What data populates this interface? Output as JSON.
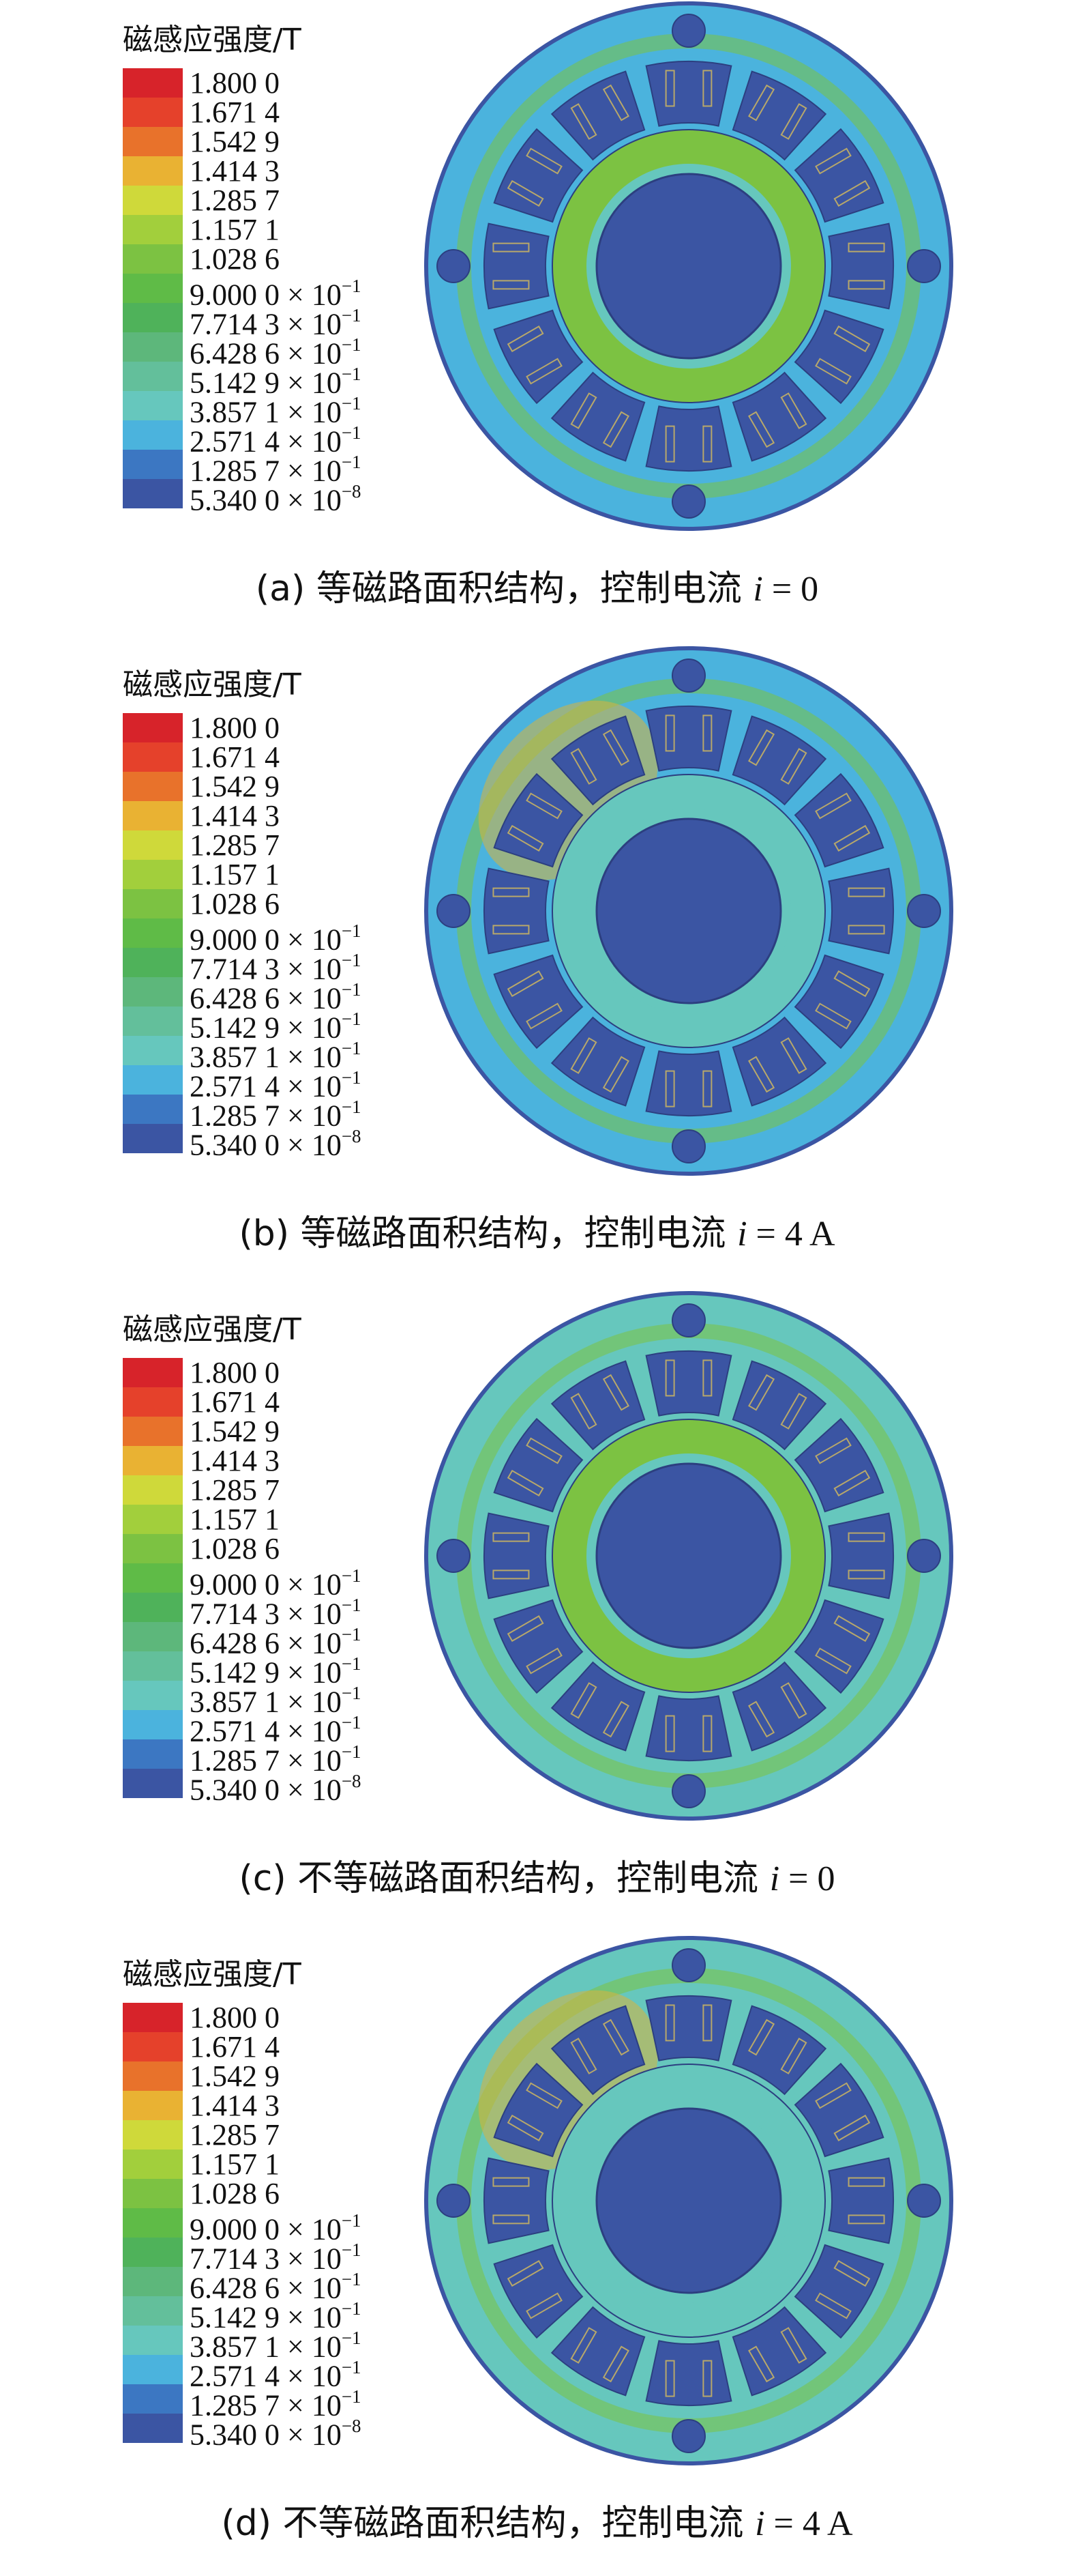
{
  "legend": {
    "title": "磁感应强度/T",
    "levels": [
      {
        "mantissa": "1.800 0",
        "exp": "",
        "color": "#d7232a"
      },
      {
        "mantissa": "1.671 4",
        "exp": "",
        "color": "#e5412b"
      },
      {
        "mantissa": "1.542 9",
        "exp": "",
        "color": "#e8722b"
      },
      {
        "mantissa": "1.414 3",
        "exp": "",
        "color": "#e9b233"
      },
      {
        "mantissa": "1.285 7",
        "exp": "",
        "color": "#cfd93a"
      },
      {
        "mantissa": "1.157 1",
        "exp": "",
        "color": "#a2cf3c"
      },
      {
        "mantissa": "1.028 6",
        "exp": "",
        "color": "#7cc242"
      },
      {
        "mantissa": "9.000 0 × 10",
        "exp": "−1",
        "color": "#5fbb47"
      },
      {
        "mantissa": "7.714 3 × 10",
        "exp": "−1",
        "color": "#4fb25a"
      },
      {
        "mantissa": "6.428 6 × 10",
        "exp": "−1",
        "color": "#5db77b"
      },
      {
        "mantissa": "5.142 9 × 10",
        "exp": "−1",
        "color": "#63bf9b"
      },
      {
        "mantissa": "3.857 1 × 10",
        "exp": "−1",
        "color": "#66c7bd"
      },
      {
        "mantissa": "2.571 4 × 10",
        "exp": "−1",
        "color": "#4bb3dd"
      },
      {
        "mantissa": "1.285 7 × 10",
        "exp": "−1",
        "color": "#3c77c2"
      },
      {
        "mantissa": "5.340 0 × 10",
        "exp": "−8",
        "color": "#3b55a3"
      }
    ]
  },
  "panels": [
    {
      "caption_prefix": "(a) 等磁路面积结构，控制电流 ",
      "var": "i",
      "caption_suffix": " = 0"
    },
    {
      "caption_prefix": "(b) 等磁路面积结构，控制电流 ",
      "var": "i",
      "caption_suffix": " = 4 A"
    },
    {
      "caption_prefix": "(c) 不等磁路面积结构，控制电流 ",
      "var": "i",
      "caption_suffix": " = 0"
    },
    {
      "caption_prefix": "(d) 不等磁路面积结构，控制电流 ",
      "var": "i",
      "caption_suffix": " = 4 A"
    }
  ],
  "colors": {
    "field_dark_blue": "#3b55a3",
    "field_cyan": "#4bb3dd",
    "field_teal": "#66c7bd",
    "field_green": "#7cc242",
    "magnet_gold": "#d8b23c",
    "saturated_red": "#d7232a",
    "coil_outline": "#b8a86a"
  }
}
